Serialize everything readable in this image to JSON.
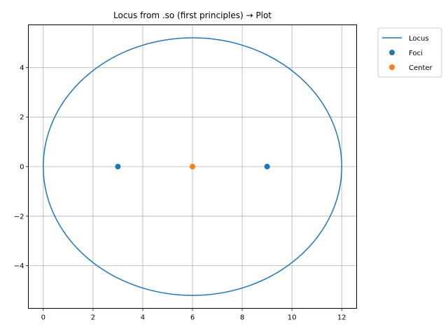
{
  "chart_data": {
    "type": "line",
    "title": "Locus from .so (first principles) → Plot",
    "xlabel": "",
    "ylabel": "",
    "xlim": [
      -0.6,
      12.6
    ],
    "ylim": [
      -5.72,
      5.72
    ],
    "xticks": [
      0,
      2,
      4,
      6,
      8,
      10,
      12
    ],
    "yticks": [
      -4,
      -2,
      0,
      2,
      4
    ],
    "xtick_labels": [
      "0",
      "2",
      "4",
      "6",
      "8",
      "10",
      "12"
    ],
    "ytick_labels": [
      "−4",
      "−2",
      "0",
      "2",
      "4"
    ],
    "grid": true,
    "legend_position": "outside-top-right",
    "series": [
      {
        "name": "Locus",
        "kind": "line",
        "color": "#1f77b4",
        "shape": "ellipse",
        "center": [
          6,
          0
        ],
        "semi_major": 6,
        "semi_minor": 5.196
      },
      {
        "name": "Foci",
        "kind": "scatter",
        "color": "#1f77b4",
        "points": [
          [
            3,
            0
          ],
          [
            9,
            0
          ]
        ]
      },
      {
        "name": "Center",
        "kind": "scatter",
        "color": "#ff7f0e",
        "points": [
          [
            6,
            0
          ]
        ]
      }
    ]
  }
}
